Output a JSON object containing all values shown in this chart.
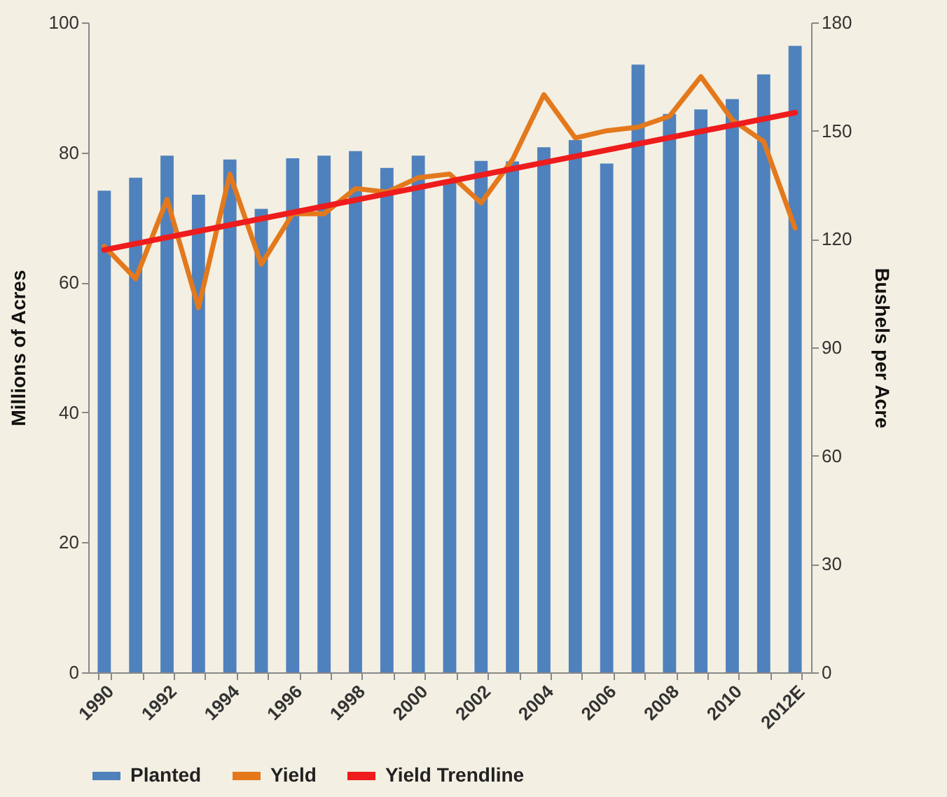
{
  "chart_data": {
    "type": "bar",
    "ylabel": "Millions of Acres",
    "y2label": "Bushels per Acre",
    "categories": [
      "1990",
      null,
      "1992",
      null,
      "1994",
      null,
      "1996",
      null,
      "1998",
      null,
      "2000",
      null,
      "2002",
      null,
      "2004",
      null,
      "2006",
      null,
      "2008",
      null,
      "2010",
      null,
      "2012E"
    ],
    "series": [
      {
        "name": "Planted",
        "color": "#4f81bd",
        "values": [
          74.1,
          76.1,
          79.5,
          73.5,
          78.9,
          71.3,
          79.1,
          79.5,
          80.2,
          77.6,
          79.5,
          75.7,
          78.7,
          78.6,
          80.8,
          81.9,
          78.3,
          93.5,
          85.9,
          86.6,
          88.2,
          92.0,
          96.4
        ]
      },
      {
        "name": "Yield",
        "type": "line",
        "axis": "y2",
        "color": "#e3791c",
        "values": [
          118,
          109,
          131,
          101,
          138,
          113,
          127,
          127,
          134,
          133,
          137,
          138,
          130,
          142,
          160,
          148,
          150,
          151,
          154,
          165,
          153,
          147,
          123
        ]
      },
      {
        "name": "Yield Trendline",
        "type": "line",
        "axis": "y2",
        "color": "#ee1c1c",
        "values": [
          117,
          null,
          null,
          null,
          null,
          null,
          null,
          null,
          null,
          null,
          null,
          null,
          null,
          null,
          null,
          null,
          null,
          null,
          null,
          null,
          null,
          null,
          155
        ]
      }
    ],
    "ylim": [
      0,
      100
    ],
    "yticks": [
      0,
      20,
      40,
      60,
      80,
      100
    ],
    "y2lim": [
      0,
      180
    ],
    "y2ticks": [
      0,
      30,
      60,
      90,
      120,
      150,
      180
    ],
    "legend": "bottom"
  }
}
